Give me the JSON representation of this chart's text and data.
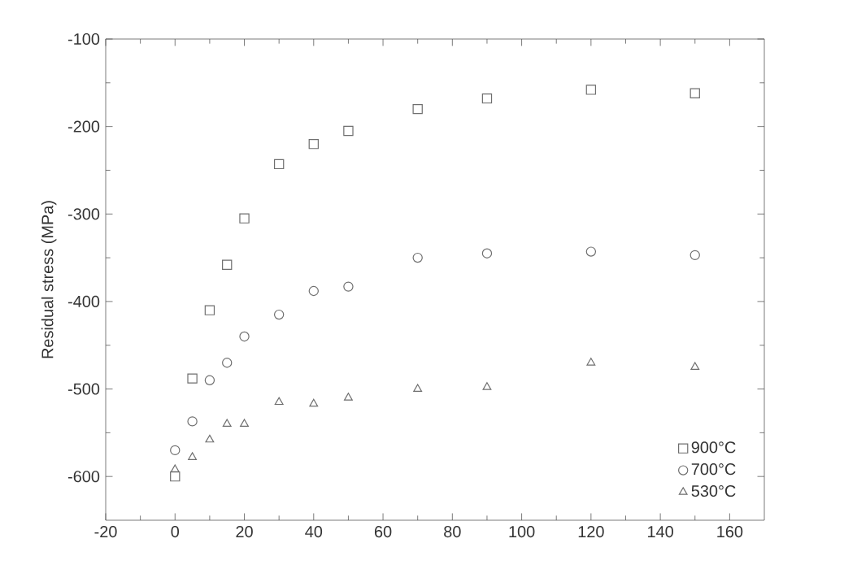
{
  "chart_data": {
    "type": "scatter",
    "ylabel": "Residual stress (MPa)",
    "x": [
      0,
      5,
      10,
      15,
      20,
      30,
      40,
      50,
      70,
      90,
      120,
      150
    ],
    "series": [
      {
        "name": "900°C",
        "color": "#6e6e6e",
        "marker": "square",
        "values": [
          -600,
          -488,
          -410,
          -358,
          -305,
          -243,
          -220,
          -205,
          -180,
          -168,
          -158,
          -162
        ]
      },
      {
        "name": "700°C",
        "color": "#6e6e6e",
        "marker": "circle",
        "values": [
          -570,
          -537,
          -490,
          -470,
          -440,
          -415,
          -388,
          -383,
          -350,
          -345,
          -343,
          -347
        ]
      },
      {
        "name": "530°C",
        "color": "#6e6e6e",
        "marker": "triangle",
        "values": [
          -592,
          -578,
          -558,
          -540,
          -540,
          -515,
          -517,
          -510,
          -500,
          -498,
          -470,
          -475
        ]
      }
    ],
    "xlim": [
      -20,
      170
    ],
    "ylim": [
      -650,
      -100
    ],
    "xticks": [
      -20,
      0,
      20,
      40,
      60,
      80,
      100,
      120,
      140,
      160
    ],
    "yticks": [
      -600,
      -500,
      -400,
      -300,
      -200,
      -100
    ],
    "grid": false,
    "legend": "bottom right"
  }
}
